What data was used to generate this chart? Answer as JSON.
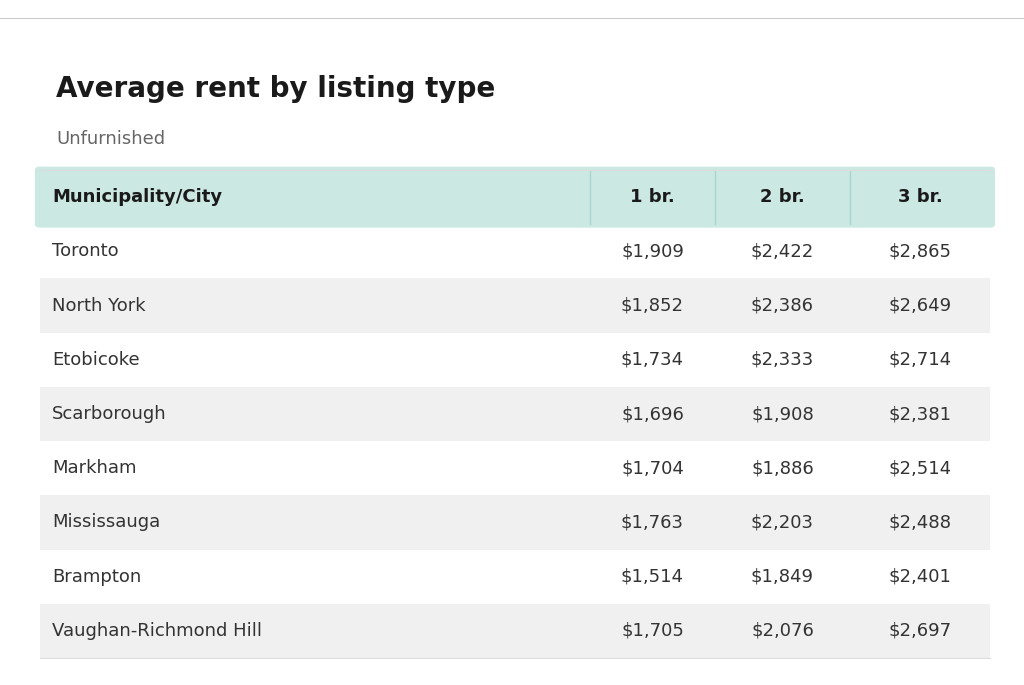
{
  "title": "Average rent by listing type",
  "subtitle": "Unfurnished",
  "columns": [
    "Municipality/City",
    "1 br.",
    "2 br.",
    "3 br."
  ],
  "rows": [
    [
      "Toronto",
      "$1,909",
      "$2,422",
      "$2,865"
    ],
    [
      "North York",
      "$1,852",
      "$2,386",
      "$2,649"
    ],
    [
      "Etobicoke",
      "$1,734",
      "$2,333",
      "$2,714"
    ],
    [
      "Scarborough",
      "$1,696",
      "$1,908",
      "$2,381"
    ],
    [
      "Markham",
      "$1,704",
      "$1,886",
      "$2,514"
    ],
    [
      "Mississauga",
      "$1,763",
      "$2,203",
      "$2,488"
    ],
    [
      "Brampton",
      "$1,514",
      "$1,849",
      "$2,401"
    ],
    [
      "Vaughan-Richmond Hill",
      "$1,705",
      "$2,076",
      "$2,697"
    ]
  ],
  "background_color": "#ffffff",
  "header_bg_color": "#cce8e3",
  "odd_row_bg_color": "#f0f0f0",
  "even_row_bg_color": "#ffffff",
  "header_font_color": "#1a1a1a",
  "row_font_color": "#333333",
  "title_font_color": "#1a1a1a",
  "subtitle_font_color": "#666666",
  "title_fontsize": 20,
  "subtitle_fontsize": 13,
  "header_fontsize": 13,
  "row_fontsize": 13,
  "separator_color": "#aad4cf",
  "top_border_color": "#dddddd"
}
